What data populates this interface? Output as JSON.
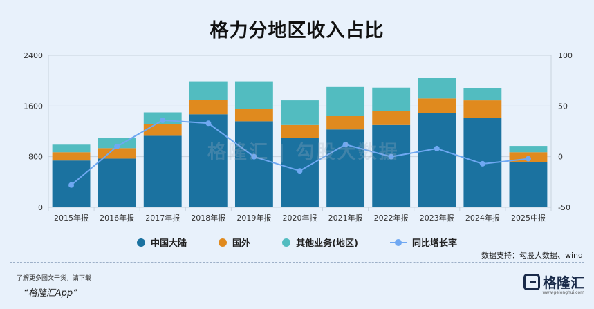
{
  "title": "格力分地区收入占比",
  "chart_data": {
    "type": "bar",
    "stacked": true,
    "title": "格力分地区收入占比",
    "categories": [
      "2015年报",
      "2016年报",
      "2017年报",
      "2018年报",
      "2019年报",
      "2020年报",
      "2021年报",
      "2022年报",
      "2023年报",
      "2024年报",
      "2025中报"
    ],
    "series": [
      {
        "name": "中国大陆",
        "color": "#1b72a0",
        "values": [
          740,
          770,
          1130,
          1470,
          1360,
          1100,
          1230,
          1300,
          1490,
          1410,
          710
        ]
      },
      {
        "name": "国外",
        "color": "#e08a1e",
        "values": [
          130,
          165,
          190,
          230,
          200,
          200,
          210,
          220,
          230,
          280,
          160
        ]
      },
      {
        "name": "其他业务(地区)",
        "color": "#52bcc0",
        "values": [
          120,
          165,
          180,
          290,
          430,
          390,
          460,
          370,
          320,
          190,
          100
        ]
      }
    ],
    "line_series": {
      "name": "同比增长率",
      "color": "#6fa8f2",
      "axis": "right",
      "values": [
        -28,
        10,
        36,
        33,
        0,
        -14,
        12,
        0,
        8,
        -7,
        -2
      ]
    },
    "y_left": {
      "min": 0,
      "max": 2400,
      "ticks": [
        0,
        800,
        1600,
        2400
      ]
    },
    "y_right": {
      "min": -50,
      "max": 100,
      "ticks": [
        -50,
        0,
        50,
        100
      ]
    },
    "grid": true,
    "legend_position": "bottom"
  },
  "legend": [
    {
      "label": "中国大陆",
      "kind": "dot",
      "color": "#1b72a0"
    },
    {
      "label": "国外",
      "kind": "dot",
      "color": "#e08a1e"
    },
    {
      "label": "其他业务(地区)",
      "kind": "dot",
      "color": "#52bcc0"
    },
    {
      "label": "同比增长率",
      "kind": "line",
      "color": "#6fa8f2"
    }
  ],
  "source": "数据支持：勾股大数据、wind",
  "footer": {
    "note": "了解更多图文干货，请下载",
    "app": "“格隆汇App”",
    "brand": "格隆汇",
    "brand_url": "www.gelonghui.com"
  },
  "watermark": "格隆汇 | 勾股大数据"
}
